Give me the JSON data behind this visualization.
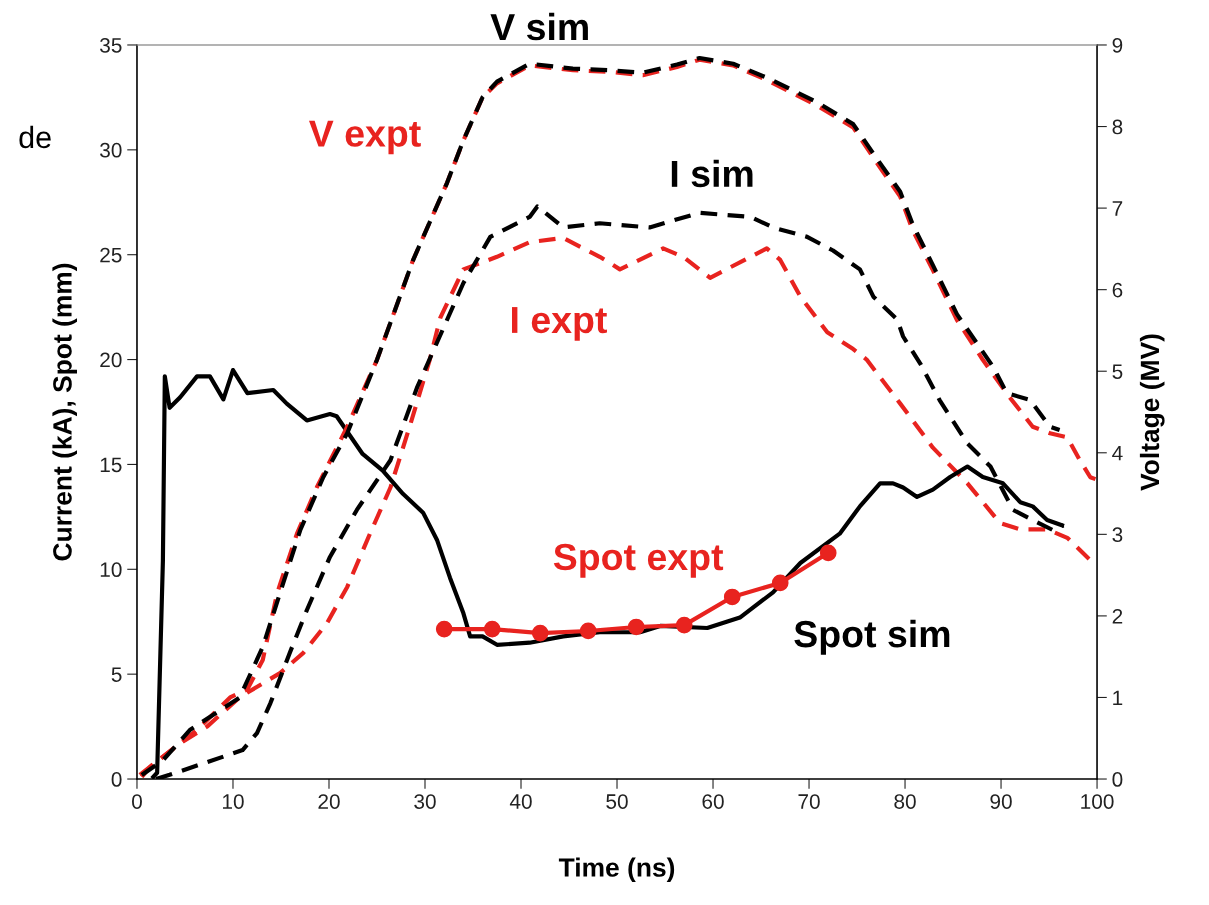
{
  "chart_data": {
    "type": "line",
    "xlabel": "Time (ns)",
    "ylabel": "Current (kA), Spot (mm)",
    "y2label": "Voltage (MV)",
    "xlim": [
      0,
      100
    ],
    "xticks": [
      0,
      10,
      20,
      30,
      40,
      50,
      60,
      70,
      80,
      90,
      100
    ],
    "ylim": [
      0,
      35
    ],
    "yticks": [
      0,
      5,
      10,
      15,
      20,
      25,
      30,
      35
    ],
    "y2lim": [
      0,
      9
    ],
    "y2ticks": [
      0,
      1,
      2,
      3,
      4,
      5,
      6,
      7,
      8,
      9
    ],
    "grid": false,
    "series": [
      {
        "name": "V expt",
        "color": "#e8231f",
        "axis": "y2",
        "line_style": "dashed",
        "marker": "none",
        "x": [
          0.3,
          1.35,
          6.25,
          9.7,
          11.5,
          13.1,
          14.6,
          16.7,
          18.75,
          21.9,
          25.0,
          28.75,
          32.3,
          34.0,
          36.0,
          37.5,
          40.9,
          45.4,
          49.3,
          52.7,
          56.25,
          58.6,
          62.1,
          65.6,
          70.8,
          74.6,
          77.1,
          79.5,
          80.8,
          82.9,
          85.4,
          88.1,
          90.9,
          93.3,
          95.1,
          96.9,
          98.2,
          99.3,
          100
        ],
        "values": [
          0.05,
          0.15,
          0.6,
          1.0,
          1.1,
          1.46,
          2.28,
          3.02,
          3.58,
          4.32,
          5.14,
          6.36,
          7.31,
          7.83,
          8.36,
          8.53,
          8.75,
          8.69,
          8.67,
          8.63,
          8.73,
          8.82,
          8.75,
          8.57,
          8.26,
          7.99,
          7.55,
          7.14,
          6.73,
          6.24,
          5.63,
          5.14,
          4.68,
          4.32,
          4.24,
          4.19,
          3.91,
          3.7,
          3.67
        ]
      },
      {
        "name": "V sim",
        "color": "#000000",
        "axis": "y2",
        "line_style": "dashed",
        "marker": "none",
        "x": [
          0.5,
          2.7,
          5.5,
          10.7,
          13.1,
          14.9,
          17.0,
          19.4,
          21.9,
          25.0,
          28.75,
          32.3,
          34.0,
          36.0,
          37.5,
          40.9,
          45.4,
          49.3,
          52.7,
          56.25,
          58.6,
          62.1,
          65.6,
          70.8,
          74.6,
          77.1,
          79.5,
          80.8,
          82.9,
          85.4,
          89.2,
          90.6,
          93.0,
          95.1,
          96.1
        ],
        "values": [
          0.05,
          0.23,
          0.6,
          1.0,
          1.62,
          2.28,
          3.05,
          3.7,
          4.24,
          5.14,
          6.36,
          7.31,
          7.83,
          8.36,
          8.55,
          8.77,
          8.71,
          8.69,
          8.66,
          8.76,
          8.84,
          8.77,
          8.6,
          8.3,
          8.03,
          7.6,
          7.2,
          6.8,
          6.3,
          5.7,
          5.05,
          4.73,
          4.65,
          4.32,
          4.28
        ]
      },
      {
        "name": "I expt",
        "color": "#e8231f",
        "axis": "y",
        "line_style": "dashed",
        "marker": "none",
        "x": [
          0.5,
          1.35,
          4.5,
          7.3,
          10.7,
          14.9,
          17.3,
          19.8,
          21.9,
          24.3,
          26.4,
          28.4,
          30.5,
          31.6,
          34.0,
          37.5,
          40.9,
          44.4,
          48.2,
          50.3,
          54.8,
          56.9,
          59.7,
          65.6,
          67.0,
          69.1,
          71.9,
          74.6,
          76.0,
          79.5,
          82.9,
          86.5,
          89.9,
          92.0,
          94.8,
          96.9,
          99.6,
          100
        ],
        "values": [
          0.1,
          0.57,
          1.7,
          2.5,
          3.9,
          5.05,
          6.0,
          7.44,
          9.16,
          11.73,
          13.9,
          16.8,
          20.0,
          22.0,
          24.3,
          24.9,
          25.6,
          25.8,
          24.9,
          24.3,
          25.3,
          24.9,
          23.9,
          25.3,
          24.75,
          23.0,
          21.3,
          20.5,
          20.0,
          17.9,
          15.8,
          14.1,
          12.2,
          11.9,
          11.9,
          11.5,
          10.3,
          10.2
        ]
      },
      {
        "name": "I sim",
        "color": "#000000",
        "axis": "y",
        "line_style": "dashed",
        "marker": "none",
        "x": [
          2.0,
          3.4,
          11.0,
          12.5,
          13.9,
          15.9,
          17.7,
          20.1,
          22.9,
          26.4,
          29.2,
          34.0,
          36.8,
          40.9,
          41.7,
          44.4,
          48.2,
          53.4,
          58.6,
          63.9,
          66.25,
          69.8,
          72.5,
          75.3,
          76.7,
          79.2,
          79.8,
          81.6,
          83.6,
          86.5,
          88.9,
          91.25,
          93.3,
          95.4,
          96.5
        ],
        "values": [
          0.0,
          0.2,
          1.38,
          2.19,
          3.62,
          6.0,
          8.06,
          10.59,
          12.83,
          15.2,
          18.7,
          23.65,
          25.85,
          26.8,
          27.3,
          26.3,
          26.5,
          26.3,
          27.0,
          26.8,
          26.3,
          25.85,
          25.2,
          24.3,
          23.0,
          21.9,
          21.1,
          19.8,
          18.07,
          16.0,
          14.9,
          12.83,
          12.35,
          11.87,
          12.1
        ]
      },
      {
        "name": "Spot sim",
        "color": "#000000",
        "axis": "y",
        "line_style": "solid",
        "marker": "none",
        "x": [
          1.7,
          2.1,
          2.7,
          2.9,
          3.4,
          4.5,
          6.25,
          7.6,
          9.0,
          10.0,
          11.5,
          14.2,
          15.6,
          17.7,
          20.1,
          20.8,
          23.5,
          25.6,
          27.7,
          29.8,
          31.25,
          32.6,
          34.0,
          34.7,
          36.0,
          37.5,
          40.9,
          44.4,
          48.2,
          52.4,
          54.5,
          59.4,
          62.8,
          66.25,
          69.1,
          73.2,
          75.3,
          77.4,
          78.75,
          79.8,
          81.25,
          82.9,
          84.7,
          86.5,
          88.1,
          90.2,
          92.0,
          93.3,
          94.8,
          96.35
        ],
        "values": [
          0.1,
          0.3,
          10.4,
          19.2,
          17.7,
          18.2,
          19.2,
          19.2,
          18.1,
          19.5,
          18.4,
          18.55,
          17.9,
          17.1,
          17.4,
          17.3,
          15.5,
          14.7,
          13.6,
          12.7,
          11.4,
          9.6,
          7.9,
          6.8,
          6.8,
          6.4,
          6.5,
          6.8,
          7.0,
          7.0,
          7.3,
          7.2,
          7.7,
          8.9,
          10.3,
          11.7,
          13.0,
          14.1,
          14.1,
          13.9,
          13.45,
          13.8,
          14.4,
          14.9,
          14.4,
          14.1,
          13.2,
          13.0,
          12.35,
          12.1
        ]
      },
      {
        "name": "Spot expt",
        "color": "#e8231f",
        "axis": "y",
        "line_style": "solid",
        "marker": "circle",
        "x": [
          32,
          37,
          42,
          47,
          52,
          57,
          62,
          67,
          72
        ],
        "values": [
          7.15,
          7.15,
          6.96,
          7.06,
          7.25,
          7.34,
          8.68,
          9.35,
          10.78
        ]
      }
    ],
    "annotations": [
      "de"
    ]
  }
}
